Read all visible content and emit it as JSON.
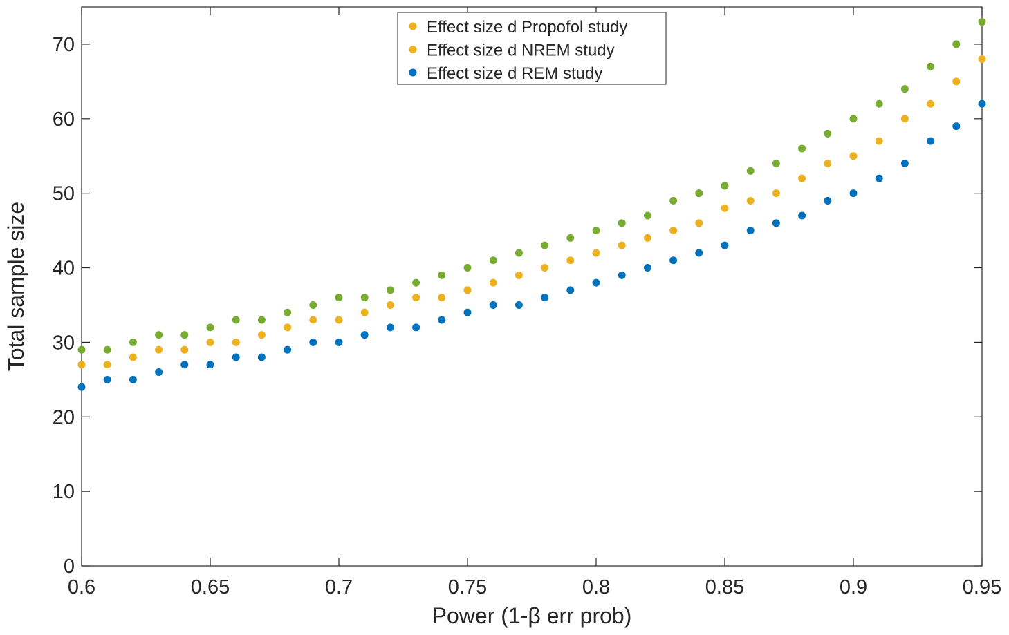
{
  "chart_data": {
    "type": "scatter",
    "title": "",
    "xlabel": "Power (1-β err prob)",
    "ylabel": "Total sample size",
    "xlim": [
      0.6,
      0.95
    ],
    "ylim": [
      0,
      75
    ],
    "x_ticks": [
      0.6,
      0.65,
      0.7,
      0.75,
      0.8,
      0.85,
      0.9,
      0.95
    ],
    "x_tick_labels": [
      "0.6",
      "0.65",
      "0.7",
      "0.75",
      "0.8",
      "0.85",
      "0.9",
      "0.95"
    ],
    "y_ticks": [
      0,
      10,
      20,
      30,
      40,
      50,
      60,
      70
    ],
    "y_tick_labels": [
      "0",
      "10",
      "20",
      "30",
      "40",
      "50",
      "60",
      "70"
    ],
    "grid": false,
    "legend_position": "top-center",
    "x": [
      0.6,
      0.61,
      0.62,
      0.63,
      0.64,
      0.65,
      0.66,
      0.67,
      0.68,
      0.69,
      0.7,
      0.71,
      0.72,
      0.73,
      0.74,
      0.75,
      0.76,
      0.77,
      0.78,
      0.79,
      0.8,
      0.81,
      0.82,
      0.83,
      0.84,
      0.85,
      0.86,
      0.87,
      0.88,
      0.89,
      0.9,
      0.91,
      0.92,
      0.93,
      0.94,
      0.95
    ],
    "series": [
      {
        "name": "Effect size d Propofol study",
        "legend_color": "#EDB120",
        "marker_color": "#77AC30",
        "values": [
          29,
          29,
          30,
          31,
          31,
          32,
          33,
          33,
          34,
          35,
          36,
          36,
          37,
          38,
          39,
          40,
          41,
          42,
          43,
          44,
          45,
          46,
          47,
          49,
          50,
          51,
          53,
          54,
          56,
          58,
          60,
          62,
          64,
          67,
          70,
          73
        ]
      },
      {
        "name": "Effect size d NREM study",
        "legend_color": "#EDB120",
        "marker_color": "#EDB120",
        "values": [
          27,
          27,
          28,
          29,
          29,
          30,
          30,
          31,
          32,
          33,
          33,
          34,
          35,
          36,
          36,
          37,
          38,
          39,
          40,
          41,
          42,
          43,
          44,
          45,
          46,
          48,
          49,
          50,
          52,
          54,
          55,
          57,
          60,
          62,
          65,
          68
        ]
      },
      {
        "name": "Effect size d REM study",
        "legend_color": "#0072BD",
        "marker_color": "#0072BD",
        "values": [
          24,
          25,
          25,
          26,
          27,
          27,
          28,
          28,
          29,
          30,
          30,
          31,
          32,
          32,
          33,
          34,
          35,
          35,
          36,
          37,
          38,
          39,
          40,
          41,
          42,
          43,
          45,
          46,
          47,
          49,
          50,
          52,
          54,
          57,
          59,
          62
        ]
      }
    ]
  }
}
